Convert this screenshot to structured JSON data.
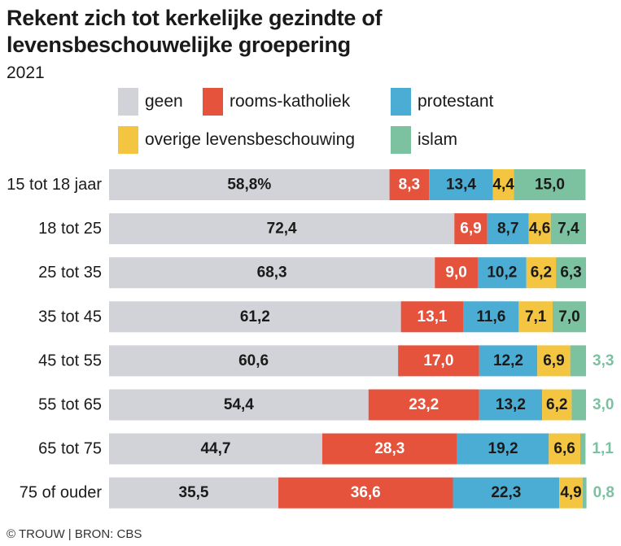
{
  "header": {
    "title": "Rekent zich tot kerkelijke gezindte of levensbeschouwelijke groepering",
    "subtitle": "2021"
  },
  "footer": {
    "source": "© TROUW | BRON: CBS"
  },
  "chart_data": {
    "type": "bar",
    "orientation": "horizontal",
    "stacked": true,
    "title": "Rekent zich tot kerkelijke gezindte of levensbeschouwelijke groepering",
    "subtitle": "2021",
    "xlabel": "",
    "ylabel": "",
    "xlim": [
      0,
      100
    ],
    "grid": false,
    "legend_position": "top",
    "categories": [
      "15 tot 18 jaar",
      "18 tot 25",
      "25 tot 35",
      "35 tot 45",
      "45 tot 55",
      "55 tot 65",
      "65 tot 75",
      "75 of ouder"
    ],
    "series": [
      {
        "name": "geen",
        "color": "#d1d3d8",
        "values": [
          58.8,
          72.4,
          68.3,
          61.2,
          60.6,
          54.4,
          44.7,
          35.5
        ],
        "labels": [
          "58,8%",
          "72,4",
          "68,3",
          "61,2",
          "60,6",
          "54,4",
          "44,7",
          "35,5"
        ]
      },
      {
        "name": "rooms-katholiek",
        "color": "#e5533d",
        "values": [
          8.3,
          6.9,
          9.0,
          13.1,
          17.0,
          23.2,
          28.3,
          36.6
        ],
        "labels": [
          "8,3",
          "6,9",
          "9,0",
          "13,1",
          "17,0",
          "23,2",
          "28,3",
          "36,6"
        ]
      },
      {
        "name": "protestant",
        "color": "#4badd4",
        "values": [
          13.4,
          8.7,
          10.2,
          11.6,
          12.2,
          13.2,
          19.2,
          22.3
        ],
        "labels": [
          "13,4",
          "8,7",
          "10,2",
          "11,6",
          "12,2",
          "13,2",
          "19,2",
          "22,3"
        ]
      },
      {
        "name": "overige levensbeschouwing",
        "color": "#f4c541",
        "values": [
          4.4,
          4.6,
          6.2,
          7.1,
          6.9,
          6.2,
          6.6,
          4.9
        ],
        "labels": [
          "4,4",
          "4,6",
          "6,2",
          "7,1",
          "6,9",
          "6,2",
          "6,6",
          "4,9"
        ]
      },
      {
        "name": "islam",
        "color": "#7cc1a0",
        "values": [
          15.0,
          7.4,
          6.3,
          7.0,
          3.3,
          3.0,
          1.1,
          0.8
        ],
        "labels": [
          "15,0",
          "7,4",
          "6,3",
          "7,0",
          "3,3",
          "3,0",
          "1,1",
          "0,8"
        ]
      }
    ]
  }
}
